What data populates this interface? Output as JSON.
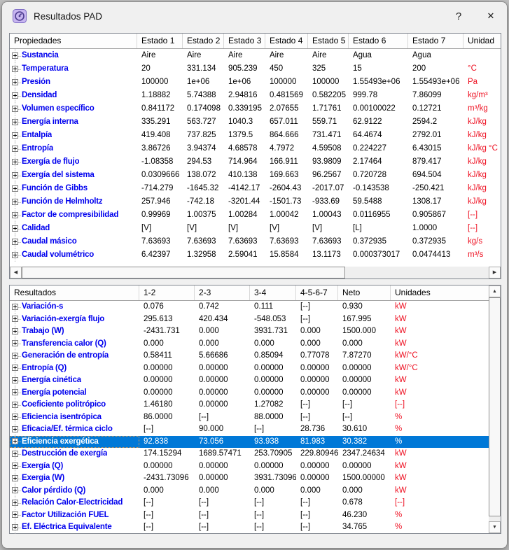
{
  "window": {
    "title": "Resultados PAD",
    "help_label": "?",
    "close_label": "✕"
  },
  "colors": {
    "label_blue": "#0000ee",
    "unit_red": "#ee1122",
    "selection_blue": "#0078d7"
  },
  "properties_table": {
    "title": "Propiedades",
    "columns": [
      "Estado 1",
      "Estado 2",
      "Estado 3",
      "Estado 4",
      "Estado 5",
      "Estado 6",
      "Estado 7"
    ],
    "unit_column": "Unidad",
    "selected_index": -1,
    "rows": [
      {
        "label": "Sustancia",
        "values": [
          "Aire",
          "Aire",
          "Aire",
          "Aire",
          "Aire",
          "Agua",
          "Agua"
        ],
        "unit": ""
      },
      {
        "label": "Temperatura",
        "values": [
          "20",
          "331.134",
          "905.239",
          "450",
          "325",
          "15",
          "200"
        ],
        "unit": "°C"
      },
      {
        "label": "Presión",
        "values": [
          "100000",
          "1e+06",
          "1e+06",
          "100000",
          "100000",
          "1.55493e+06",
          "1.55493e+06"
        ],
        "unit": "Pa"
      },
      {
        "label": "Densidad",
        "values": [
          "1.18882",
          "5.74388",
          "2.94816",
          "0.481569",
          "0.582205",
          "999.78",
          "7.86099"
        ],
        "unit": "kg/m³"
      },
      {
        "label": "Volumen específico",
        "values": [
          "0.841172",
          "0.174098",
          "0.339195",
          "2.07655",
          "1.71761",
          "0.00100022",
          "0.12721"
        ],
        "unit": "m³/kg"
      },
      {
        "label": "Energía interna",
        "values": [
          "335.291",
          "563.727",
          "1040.3",
          "657.011",
          "559.71",
          "62.9122",
          "2594.2"
        ],
        "unit": "kJ/kg"
      },
      {
        "label": "Entalpía",
        "values": [
          "419.408",
          "737.825",
          "1379.5",
          "864.666",
          "731.471",
          "64.4674",
          "2792.01"
        ],
        "unit": "kJ/kg"
      },
      {
        "label": "Entropía",
        "values": [
          "3.86726",
          "3.94374",
          "4.68578",
          "4.7972",
          "4.59508",
          "0.224227",
          "6.43015"
        ],
        "unit": "kJ/kg °C"
      },
      {
        "label": "Exergía de flujo",
        "values": [
          "-1.08358",
          "294.53",
          "714.964",
          "166.911",
          "93.9809",
          "2.17464",
          "879.417"
        ],
        "unit": "kJ/kg"
      },
      {
        "label": "Exergía del sistema",
        "values": [
          "0.0309666",
          "138.072",
          "410.138",
          "169.663",
          "96.2567",
          "0.720728",
          "694.504"
        ],
        "unit": "kJ/kg"
      },
      {
        "label": "Función de Gibbs",
        "values": [
          "-714.279",
          "-1645.32",
          "-4142.17",
          "-2604.43",
          "-2017.07",
          "-0.143538",
          "-250.421"
        ],
        "unit": "kJ/kg"
      },
      {
        "label": "Función de Helmholtz",
        "values": [
          "257.946",
          "-742.18",
          "-3201.44",
          "-1501.73",
          "-933.69",
          "59.5488",
          "1308.17"
        ],
        "unit": "kJ/kg"
      },
      {
        "label": "Factor de compresibilidad",
        "values": [
          "0.99969",
          "1.00375",
          "1.00284",
          "1.00042",
          "1.00043",
          "0.0116955",
          "0.905867"
        ],
        "unit": "[--]"
      },
      {
        "label": "Calidad",
        "values": [
          "[V]",
          "[V]",
          "[V]",
          "[V]",
          "[V]",
          "[L]",
          "1.0000"
        ],
        "unit": "[--]"
      },
      {
        "label": "Caudal másico",
        "values": [
          "7.63693",
          "7.63693",
          "7.63693",
          "7.63693",
          "7.63693",
          "0.372935",
          "0.372935"
        ],
        "unit": "kg/s"
      },
      {
        "label": "Caudal volumétrico",
        "values": [
          "6.42397",
          "1.32958",
          "2.59041",
          "15.8584",
          "13.1173",
          "0.000373017",
          "0.0474413"
        ],
        "unit": "m³/s"
      }
    ]
  },
  "results_table": {
    "title": "Resultados",
    "columns": [
      "1-2",
      "2-3",
      "3-4",
      "4-5-6-7",
      "Neto"
    ],
    "unit_column": "Unidades",
    "selected_index": 11,
    "rows": [
      {
        "label": "Variación-s",
        "values": [
          "0.076",
          "0.742",
          "0.111",
          "[--]",
          "0.930"
        ],
        "unit": "kW"
      },
      {
        "label": "Variación-exergía flujo",
        "values": [
          "295.613",
          "420.434",
          "-548.053",
          "[--]",
          "167.995"
        ],
        "unit": "kW"
      },
      {
        "label": "Trabajo (W)",
        "values": [
          "-2431.731",
          "0.000",
          "3931.731",
          "0.000",
          "1500.000"
        ],
        "unit": "kW"
      },
      {
        "label": "Transferencia calor (Q)",
        "values": [
          "0.000",
          "0.000",
          "0.000",
          "0.000",
          "0.000"
        ],
        "unit": "kW"
      },
      {
        "label": "Generación de entropía",
        "values": [
          "0.58411",
          "5.66686",
          "0.85094",
          "0.77078",
          "7.87270"
        ],
        "unit": "kW/°C"
      },
      {
        "label": "Entropía (Q)",
        "values": [
          "0.00000",
          "0.00000",
          "0.00000",
          "0.00000",
          "0.00000"
        ],
        "unit": "kW/°C"
      },
      {
        "label": "Energía cinética",
        "values": [
          "0.00000",
          "0.00000",
          "0.00000",
          "0.00000",
          "0.00000"
        ],
        "unit": "kW"
      },
      {
        "label": "Energía potencial",
        "values": [
          "0.00000",
          "0.00000",
          "0.00000",
          "0.00000",
          "0.00000"
        ],
        "unit": "kW"
      },
      {
        "label": "Coeficiente politrópico",
        "values": [
          "1.46180",
          "0.00000",
          "1.27082",
          "[--]",
          "[--]"
        ],
        "unit": "[--]"
      },
      {
        "label": "Eficiencia isentrópica",
        "values": [
          "86.0000",
          "[--]",
          "88.0000",
          "[--]",
          "[--]"
        ],
        "unit": "%"
      },
      {
        "label": "Eficacia/Ef. térmica ciclo",
        "values": [
          "[--]",
          "90.000",
          "[--]",
          "28.736",
          "30.610"
        ],
        "unit": "%"
      },
      {
        "label": "Eficiencia exergética",
        "values": [
          "92.838",
          "73.056",
          "93.938",
          "81.983",
          "30.382"
        ],
        "unit": "%"
      },
      {
        "label": "Destrucción de exergía",
        "values": [
          "174.15294",
          "1689.57471",
          "253.70905",
          "229.80946",
          "2347.24634"
        ],
        "unit": "kW"
      },
      {
        "label": "Exergía (Q)",
        "values": [
          "0.00000",
          "0.00000",
          "0.00000",
          "0.00000",
          "0.00000"
        ],
        "unit": "kW"
      },
      {
        "label": "Exergia (W)",
        "values": [
          "-2431.73096",
          "0.00000",
          "3931.73096",
          "0.00000",
          "1500.00000"
        ],
        "unit": "kW"
      },
      {
        "label": "Calor pérdido (Q)",
        "values": [
          "0.000",
          "0.000",
          "0.000",
          "0.000",
          "0.000"
        ],
        "unit": "kW"
      },
      {
        "label": "Relación Calor-Electricidad",
        "values": [
          "[--]",
          "[--]",
          "[--]",
          "[--]",
          "0.678"
        ],
        "unit": "[--]"
      },
      {
        "label": "Factor Utilización FUEL",
        "values": [
          "[--]",
          "[--]",
          "[--]",
          "[--]",
          "46.230"
        ],
        "unit": "%"
      },
      {
        "label": "Ef. Eléctrica Equivalente",
        "values": [
          "[--]",
          "[--]",
          "[--]",
          "[--]",
          "34.765"
        ],
        "unit": "%"
      }
    ]
  }
}
